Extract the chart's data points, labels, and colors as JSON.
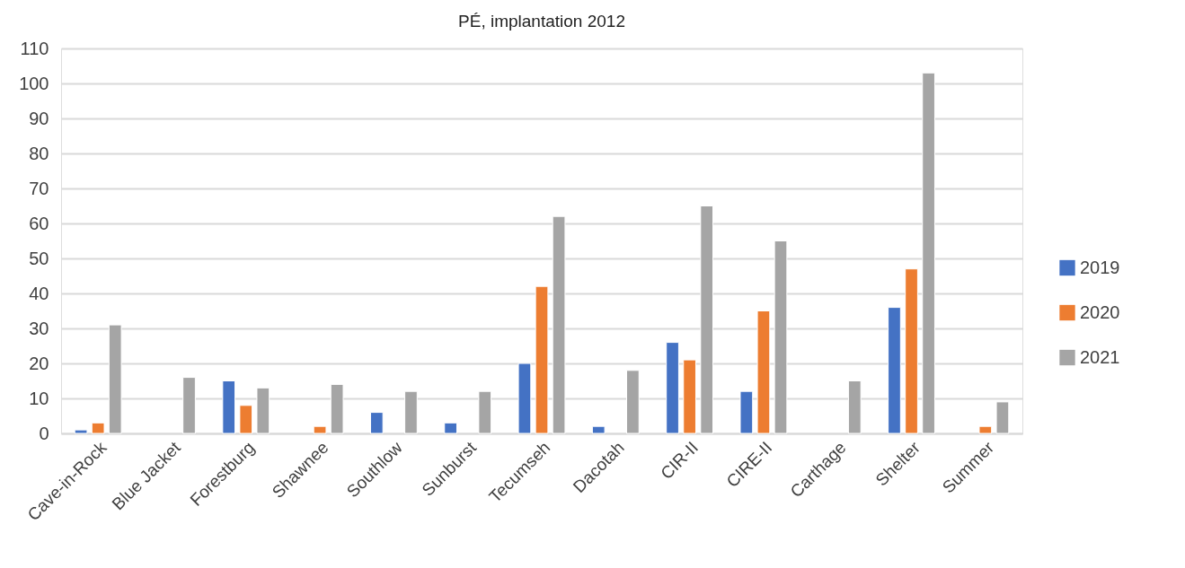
{
  "chart_data": {
    "type": "bar",
    "title": "PÉ, implantation 2012",
    "categories": [
      "Cave-in-Rock",
      "Blue Jacket",
      "Forestburg",
      "Shawnee",
      "Southlow",
      "Sunburst",
      "Tecumseh",
      "Dacotah",
      "CIR-II",
      "CIRE-II",
      "Carthage",
      "Shelter",
      "Summer"
    ],
    "series": [
      {
        "name": "2019",
        "color": "#4472c4",
        "values": [
          1,
          null,
          15,
          null,
          6,
          3,
          20,
          2,
          26,
          12,
          null,
          36,
          null
        ]
      },
      {
        "name": "2020",
        "color": "#ed7d31",
        "values": [
          3,
          null,
          8,
          2,
          null,
          null,
          42,
          null,
          21,
          35,
          null,
          47,
          2
        ]
      },
      {
        "name": "2021",
        "color": "#a5a5a5",
        "values": [
          31,
          16,
          13,
          14,
          12,
          12,
          62,
          18,
          65,
          55,
          15,
          103,
          9
        ]
      }
    ],
    "ylim": [
      0,
      110
    ],
    "yticks": [
      0,
      10,
      20,
      30,
      40,
      50,
      60,
      70,
      80,
      90,
      100,
      110
    ],
    "grid": "y",
    "legend": "right"
  }
}
